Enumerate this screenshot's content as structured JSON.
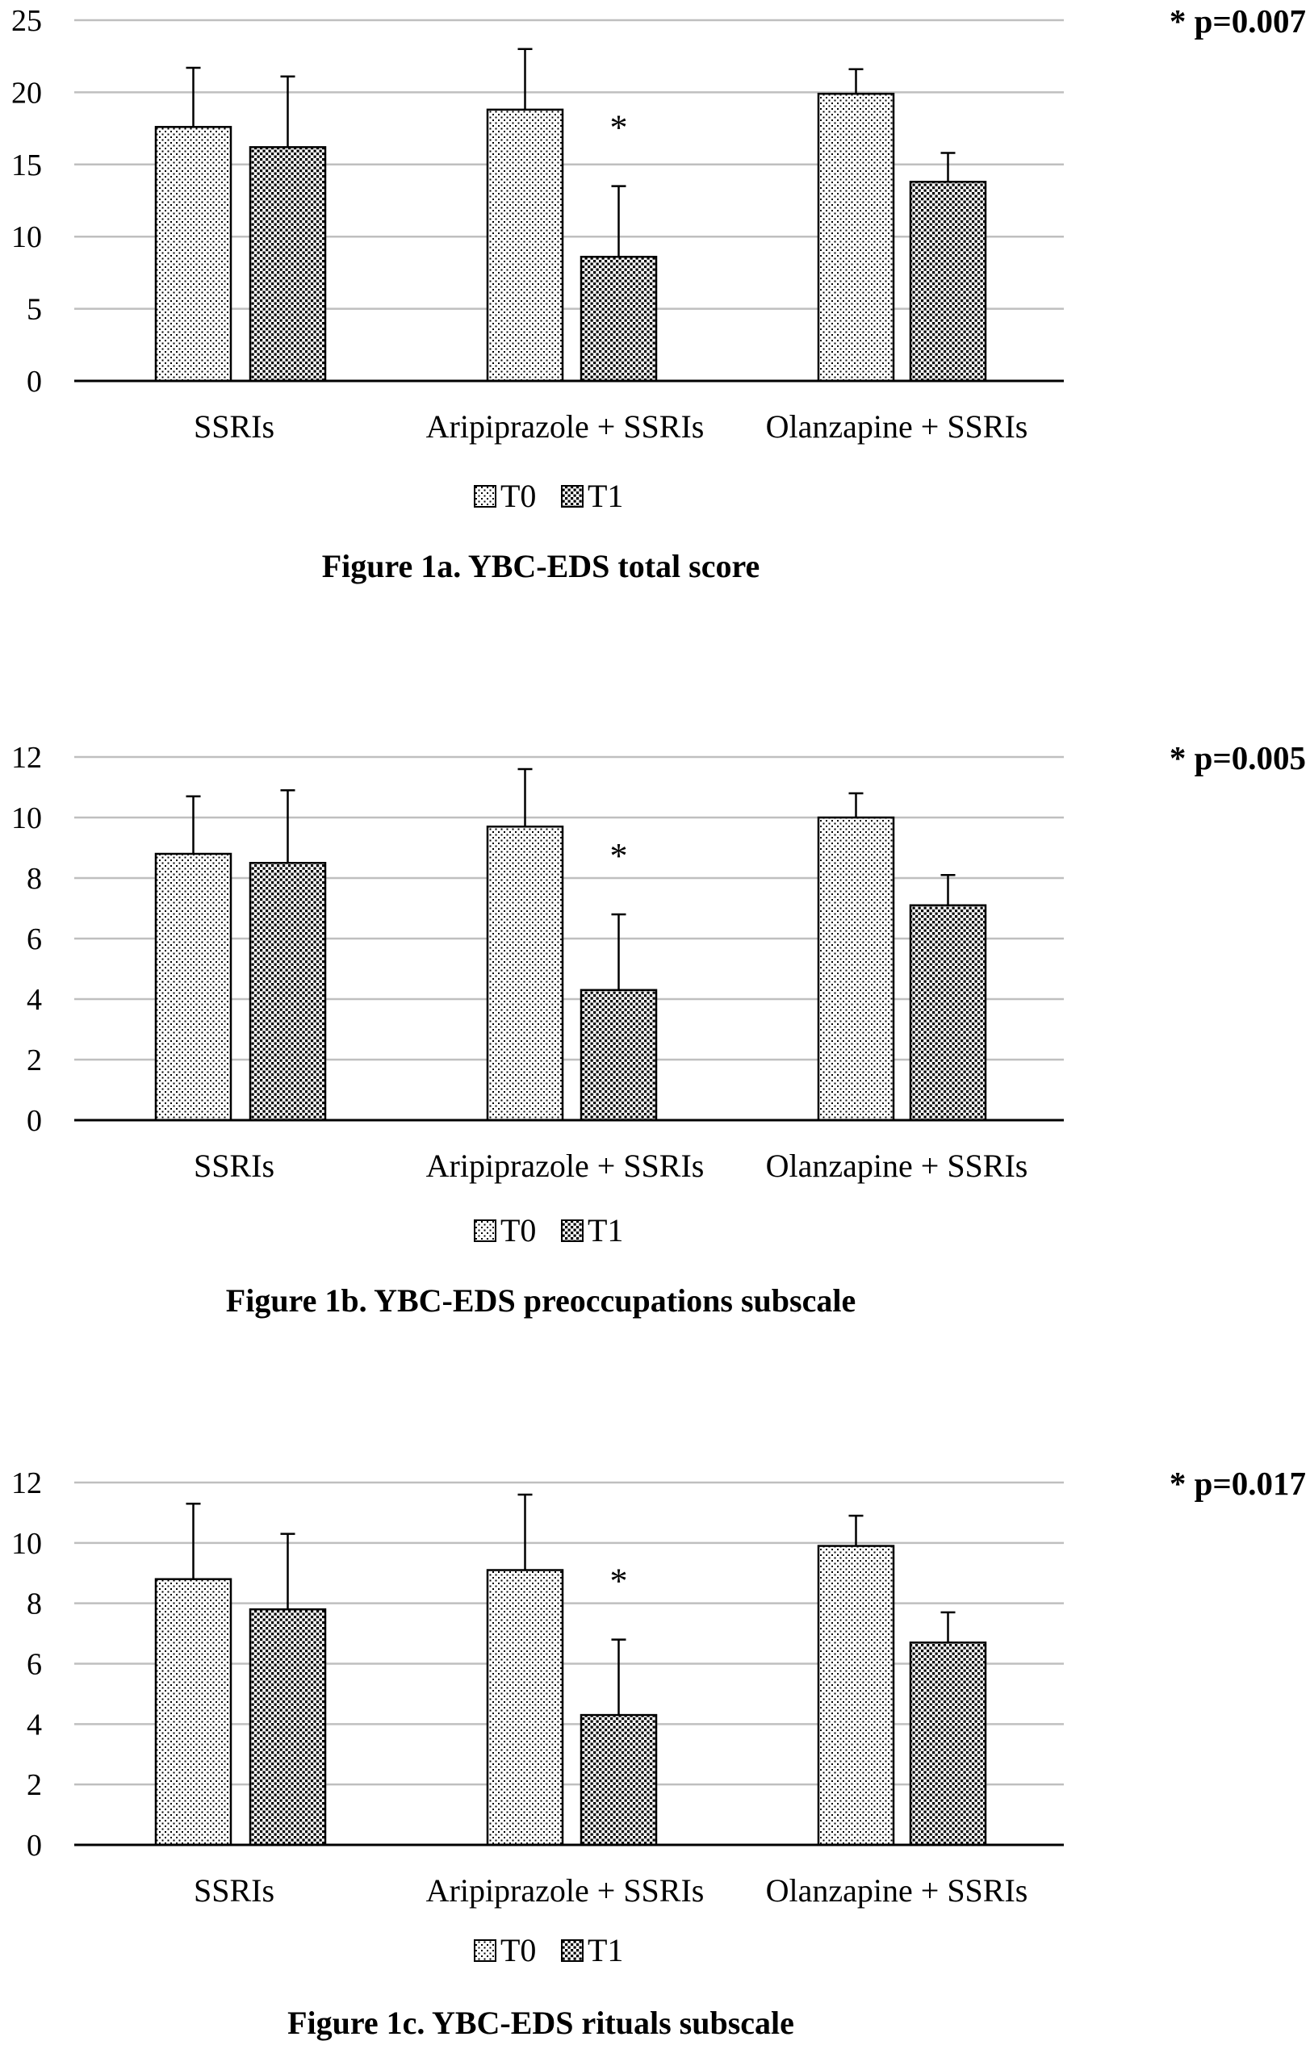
{
  "legend": {
    "items": [
      "T0",
      "T1"
    ]
  },
  "chart_data": [
    {
      "type": "bar",
      "title": "Figure 1a. YBC-EDS total score",
      "annotation": "* p=0.007",
      "categories": [
        "SSRIs",
        "Aripiprazole + SSRIs",
        "Olanzapine + SSRIs"
      ],
      "yticks": [
        "0",
        "5",
        "10",
        "15",
        "20",
        "25"
      ],
      "ylim": [
        0,
        25
      ],
      "grid": true,
      "legend_position": "bottom",
      "significance_marks": [
        {
          "category": "Aripiprazole + SSRIs",
          "series": "T1",
          "label": "*"
        }
      ],
      "series": [
        {
          "name": "T0",
          "values": [
            17.6,
            18.8,
            19.9
          ],
          "error": [
            4.1,
            4.2,
            1.7
          ]
        },
        {
          "name": "T1",
          "values": [
            16.2,
            8.6,
            13.8
          ],
          "error": [
            4.9,
            4.9,
            2.0
          ]
        }
      ]
    },
    {
      "type": "bar",
      "title": "Figure 1b. YBC-EDS preoccupations subscale",
      "annotation": "* p=0.005",
      "categories": [
        "SSRIs",
        "Aripiprazole + SSRIs",
        "Olanzapine + SSRIs"
      ],
      "yticks": [
        "0",
        "2",
        "4",
        "6",
        "8",
        "10",
        "12"
      ],
      "ylim": [
        0,
        12
      ],
      "grid": true,
      "legend_position": "bottom",
      "significance_marks": [
        {
          "category": "Aripiprazole + SSRIs",
          "series": "T1",
          "label": "*"
        }
      ],
      "series": [
        {
          "name": "T0",
          "values": [
            8.8,
            9.7,
            10.0
          ],
          "error": [
            1.9,
            1.9,
            0.8
          ]
        },
        {
          "name": "T1",
          "values": [
            8.5,
            4.3,
            7.1
          ],
          "error": [
            2.4,
            2.5,
            1.0
          ]
        }
      ]
    },
    {
      "type": "bar",
      "title": "Figure 1c. YBC-EDS rituals subscale",
      "annotation": "* p=0.017",
      "categories": [
        "SSRIs",
        "Aripiprazole + SSRIs",
        "Olanzapine + SSRIs"
      ],
      "yticks": [
        "0",
        "2",
        "4",
        "6",
        "8",
        "10",
        "12"
      ],
      "ylim": [
        0,
        12
      ],
      "grid": true,
      "legend_position": "bottom",
      "significance_marks": [
        {
          "category": "Aripiprazole + SSRIs",
          "series": "T1",
          "label": "*"
        }
      ],
      "series": [
        {
          "name": "T0",
          "values": [
            8.8,
            9.1,
            9.9
          ],
          "error": [
            2.5,
            2.5,
            1.0
          ]
        },
        {
          "name": "T1",
          "values": [
            7.8,
            4.3,
            6.7
          ],
          "error": [
            2.5,
            2.5,
            1.0
          ]
        }
      ]
    }
  ]
}
